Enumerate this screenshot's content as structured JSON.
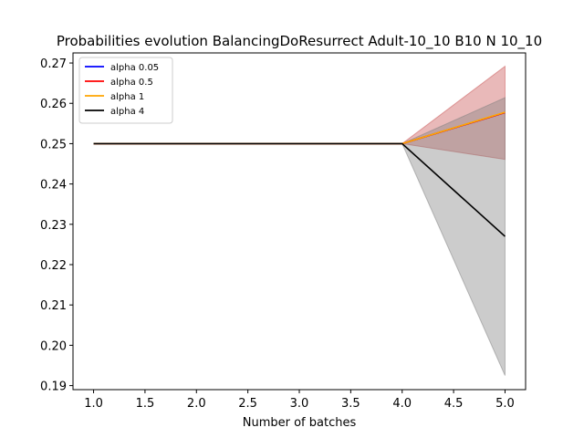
{
  "chart_data": {
    "type": "line",
    "title": "Probabilities evolution BalancingDoResurrect Adult-10_10 B10 N 10_10",
    "xlabel": "Number of batches",
    "ylabel": "",
    "xlim": [
      0.8,
      5.2
    ],
    "ylim": [
      0.189,
      0.2725
    ],
    "xticks": [
      "1.0",
      "1.5",
      "2.0",
      "2.5",
      "3.0",
      "3.5",
      "4.0",
      "4.5",
      "5.0"
    ],
    "yticks": [
      "0.19",
      "0.20",
      "0.21",
      "0.22",
      "0.23",
      "0.24",
      "0.25",
      "0.26",
      "0.27"
    ],
    "grid": false,
    "legend_position": "top-left",
    "x": [
      1,
      2,
      3,
      4,
      5
    ],
    "series": [
      {
        "name": "alpha 0.05",
        "color": "#0000ff",
        "values": [
          0.25,
          0.25,
          0.25,
          0.25,
          0.2577
        ]
      },
      {
        "name": "alpha 0.5",
        "color": "#ff0000",
        "values": [
          0.25,
          0.25,
          0.25,
          0.25,
          0.2577
        ],
        "band_low": [
          0.25,
          0.25,
          0.25,
          0.25,
          0.2461
        ],
        "band_high": [
          0.25,
          0.25,
          0.25,
          0.25,
          0.2692
        ],
        "band_color": "#c85050"
      },
      {
        "name": "alpha 1",
        "color": "#ffa500",
        "values": [
          0.25,
          0.25,
          0.25,
          0.25,
          0.2578
        ]
      },
      {
        "name": "alpha 4",
        "color": "#000000",
        "values": [
          0.25,
          0.25,
          0.25,
          0.25,
          0.227
        ],
        "band_low": [
          0.25,
          0.25,
          0.25,
          0.25,
          0.1925
        ],
        "band_high": [
          0.25,
          0.25,
          0.25,
          0.25,
          0.2614
        ],
        "band_color": "#808080"
      }
    ]
  }
}
